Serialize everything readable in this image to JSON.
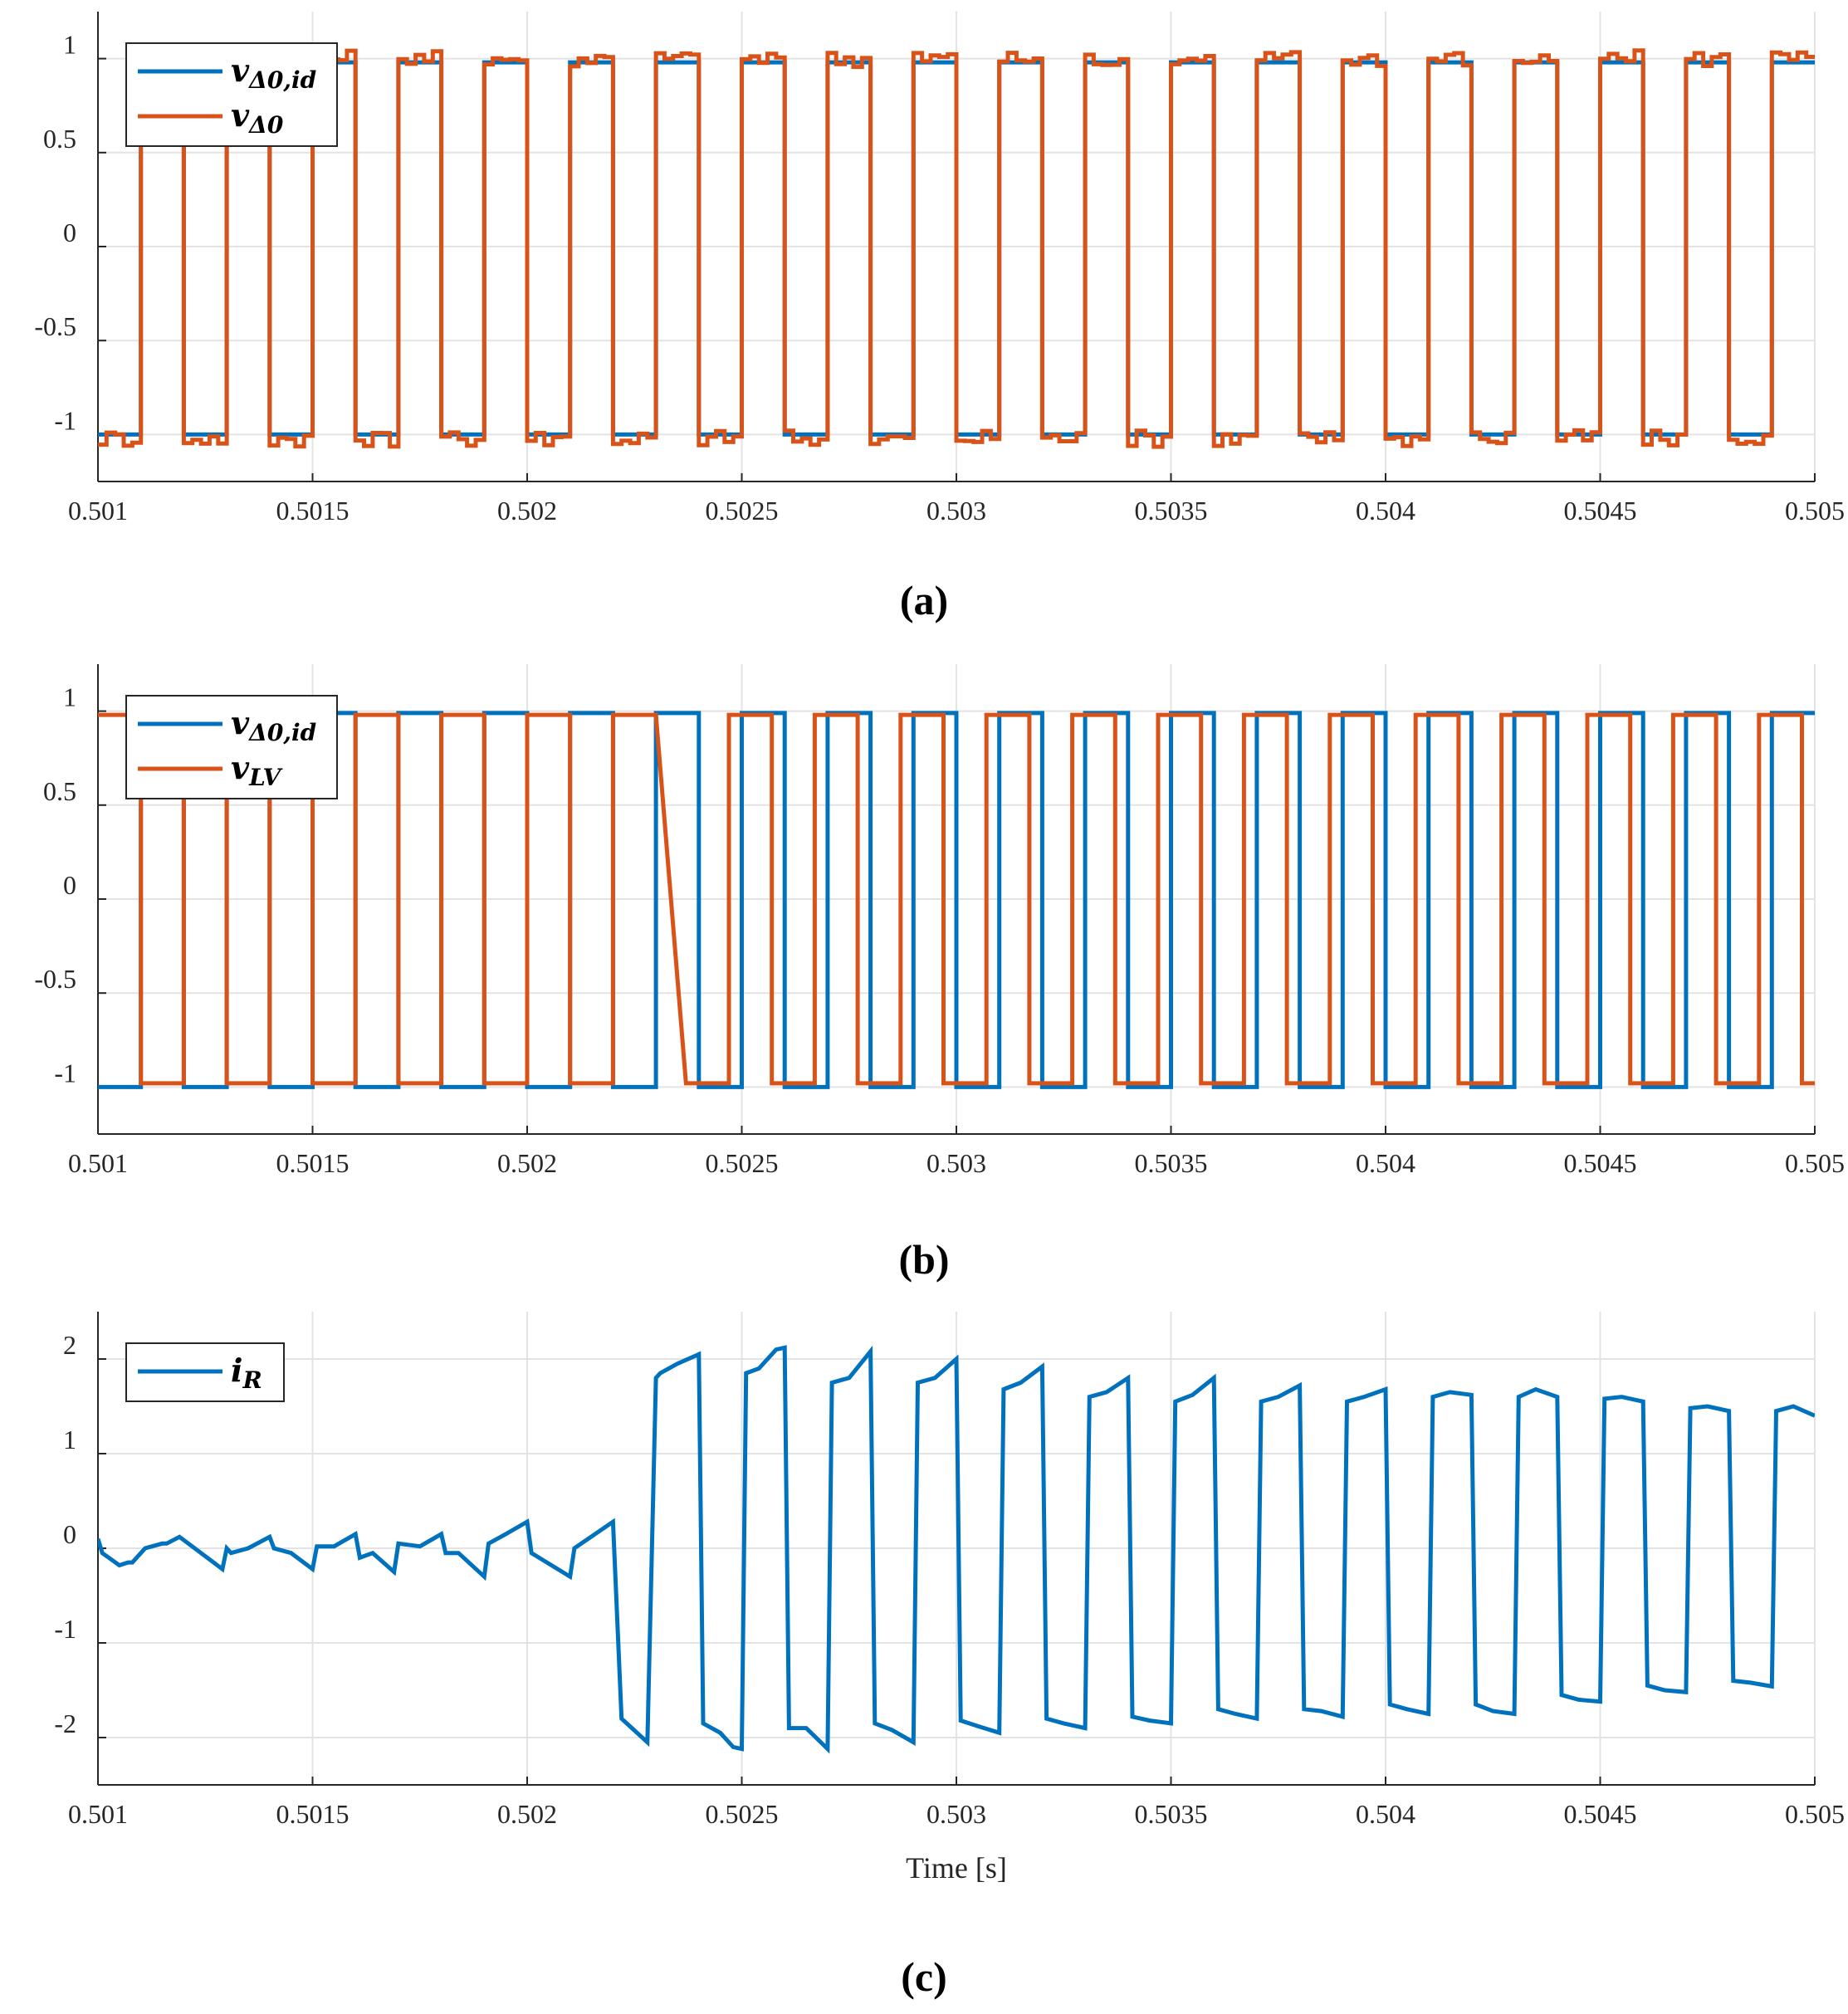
{
  "chart_data": [
    {
      "type": "line",
      "panel_label": "(a)",
      "xlabel": "",
      "ylabel": "",
      "xlim": [
        0.501,
        0.505
      ],
      "ylim": [
        -1.25,
        1.25
      ],
      "xticks": [
        0.501,
        0.5015,
        0.502,
        0.5025,
        0.503,
        0.5035,
        0.504,
        0.5045,
        0.505
      ],
      "xtick_labels": [
        "0.501",
        "0.5015",
        "0.502",
        "0.5025",
        "0.503",
        "0.5035",
        "0.504",
        "0.5045",
        "0.505"
      ],
      "yticks": [
        1,
        0.5,
        0,
        -0.5,
        -1
      ],
      "ytick_labels": [
        "1",
        "0.5",
        "0",
        "-0.5",
        "-1"
      ],
      "grid": true,
      "legend_position": "top-left",
      "series": [
        {
          "name": "v_{Δ0,id}",
          "label_main": "v",
          "label_sub": "Δ0,id",
          "color": "#0072BD",
          "waveform": "square",
          "period": 0.0002,
          "high": 0.98,
          "low": -1.0,
          "start_high": false
        },
        {
          "name": "v_{Δ0}",
          "label_main": "v",
          "label_sub": "Δ0",
          "color": "#D95319",
          "waveform": "square-with-ripple",
          "period": 0.0002,
          "high": 1.0,
          "low": -1.02,
          "start_high": false
        }
      ]
    },
    {
      "type": "line",
      "panel_label": "(b)",
      "xlabel": "",
      "ylabel": "",
      "xlim": [
        0.501,
        0.505
      ],
      "ylim": [
        -1.25,
        1.25
      ],
      "xticks": [
        0.501,
        0.5015,
        0.502,
        0.5025,
        0.503,
        0.5035,
        0.504,
        0.5045,
        0.505
      ],
      "xtick_labels": [
        "0.501",
        "0.5015",
        "0.502",
        "0.5025",
        "0.503",
        "0.5035",
        "0.504",
        "0.5045",
        "0.505"
      ],
      "yticks": [
        1,
        0.5,
        0,
        -0.5,
        -1
      ],
      "ytick_labels": [
        "1",
        "0.5",
        "0",
        "-0.5",
        "-1"
      ],
      "grid": true,
      "legend_position": "top-left",
      "series": [
        {
          "name": "v_{Δ0,id}",
          "label_main": "v",
          "label_sub": "Δ0,id",
          "color": "#0072BD",
          "waveform": "square",
          "period": 0.0002,
          "high": 0.99,
          "low": -1.0,
          "start_high": false
        },
        {
          "name": "v_{LV}",
          "label_main": "v",
          "label_sub": "LV",
          "color": "#D95319",
          "waveform": "square-phase-shift",
          "period": 0.0002,
          "high": 0.98,
          "low": -0.98,
          "shift_start": 0.50221,
          "shift": 7e-05,
          "start_high": true
        }
      ]
    },
    {
      "type": "line",
      "panel_label": "(c)",
      "xlabel": "Time [s]",
      "ylabel": "",
      "xlim": [
        0.501,
        0.505
      ],
      "ylim": [
        -2.5,
        2.5
      ],
      "xticks": [
        0.501,
        0.5015,
        0.502,
        0.5025,
        0.503,
        0.5035,
        0.504,
        0.5045,
        0.505
      ],
      "xtick_labels": [
        "0.501",
        "0.5015",
        "0.502",
        "0.5025",
        "0.503",
        "0.5035",
        "0.504",
        "0.5045",
        "0.505"
      ],
      "yticks": [
        2,
        1,
        0,
        -1,
        -2
      ],
      "ytick_labels": [
        "2",
        "1",
        "0",
        "-1",
        "-2"
      ],
      "grid": true,
      "legend_position": "top-left",
      "series": [
        {
          "name": "i_R",
          "label_main": "i",
          "label_sub": "R",
          "color": "#0072BD",
          "x": [
            0.501,
            0.50101,
            0.50105,
            0.50107,
            0.50108,
            0.50111,
            0.50115,
            0.50116,
            0.50119,
            0.50129,
            0.5013,
            0.50131,
            0.50135,
            0.5014,
            0.50141,
            0.50145,
            0.5015,
            0.50151,
            0.50155,
            0.5016,
            0.50161,
            0.50164,
            0.50169,
            0.5017,
            0.50175,
            0.5018,
            0.50181,
            0.50184,
            0.5019,
            0.50191,
            0.50195,
            0.502,
            0.50201,
            0.5021,
            0.50211,
            0.5022,
            0.50222,
            0.50228,
            0.5023,
            0.50231,
            0.50235,
            0.5024,
            0.50241,
            0.50245,
            0.50248,
            0.5025,
            0.50251,
            0.50254,
            0.50258,
            0.5026,
            0.50261,
            0.50265,
            0.5027,
            0.50271,
            0.50275,
            0.5028,
            0.50281,
            0.50285,
            0.5029,
            0.50291,
            0.50295,
            0.503,
            0.50301,
            0.50305,
            0.5031,
            0.50311,
            0.50315,
            0.5032,
            0.50321,
            0.50325,
            0.5033,
            0.50331,
            0.50335,
            0.5034,
            0.50341,
            0.50345,
            0.5035,
            0.50351,
            0.50355,
            0.5036,
            0.50361,
            0.50365,
            0.5037,
            0.50371,
            0.50375,
            0.5038,
            0.50381,
            0.50385,
            0.5039,
            0.50391,
            0.50395,
            0.504,
            0.50401,
            0.50405,
            0.5041,
            0.50411,
            0.50415,
            0.5042,
            0.50421,
            0.50425,
            0.5043,
            0.50431,
            0.50435,
            0.5044,
            0.50441,
            0.50445,
            0.5045,
            0.50451,
            0.50455,
            0.5046,
            0.50461,
            0.50465,
            0.5047,
            0.50471,
            0.50475,
            0.5048,
            0.50481,
            0.50485,
            0.5049,
            0.50491,
            0.50495,
            0.505
          ],
          "y": [
            0.1,
            -0.05,
            -0.18,
            -0.15,
            -0.15,
            0.0,
            0.05,
            0.05,
            0.12,
            -0.22,
            0.0,
            -0.05,
            0.0,
            0.12,
            0.0,
            -0.05,
            -0.22,
            0.02,
            0.02,
            0.15,
            -0.1,
            -0.05,
            -0.25,
            0.05,
            0.02,
            0.15,
            -0.05,
            -0.05,
            -0.3,
            0.05,
            0.15,
            0.28,
            -0.05,
            -0.3,
            0.0,
            0.28,
            -1.8,
            -2.05,
            1.8,
            1.85,
            1.95,
            2.05,
            -1.85,
            -1.95,
            -2.1,
            -2.12,
            1.85,
            1.9,
            2.1,
            2.12,
            -1.9,
            -1.9,
            -2.12,
            1.75,
            1.8,
            2.08,
            -1.85,
            -1.92,
            -2.05,
            1.75,
            1.8,
            2.0,
            -1.82,
            -1.88,
            -1.95,
            1.68,
            1.75,
            1.92,
            -1.8,
            -1.85,
            -1.9,
            1.6,
            1.65,
            1.8,
            -1.78,
            -1.82,
            -1.85,
            1.55,
            1.62,
            1.8,
            -1.7,
            -1.75,
            -1.8,
            1.55,
            1.6,
            1.72,
            -1.7,
            -1.72,
            -1.78,
            1.55,
            1.6,
            1.68,
            -1.65,
            -1.7,
            -1.75,
            1.6,
            1.65,
            1.62,
            -1.65,
            -1.72,
            -1.75,
            1.6,
            1.68,
            1.6,
            -1.55,
            -1.6,
            -1.62,
            1.58,
            1.6,
            1.55,
            -1.45,
            -1.5,
            -1.52,
            1.48,
            1.5,
            1.45,
            -1.4,
            -1.42,
            -1.46,
            1.45,
            1.5,
            1.4
          ]
        }
      ]
    }
  ]
}
